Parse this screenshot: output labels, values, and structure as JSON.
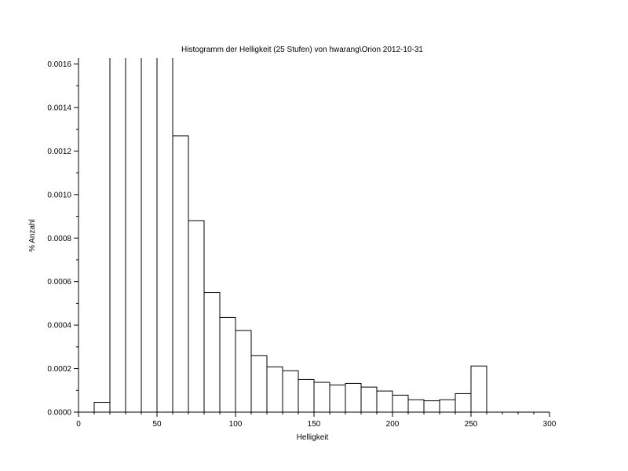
{
  "chart_data": {
    "type": "bar",
    "title": "Histogramm der Helligkeit (25 Stufen) von hwarang\\Orion 2012-10-31",
    "xlabel": "Helligkeit",
    "ylabel": "% Anzahl",
    "xlim": [
      0,
      300
    ],
    "ylim": [
      0,
      0.0016
    ],
    "x_ticks": [
      0,
      50,
      100,
      150,
      200,
      250,
      300
    ],
    "x_tick_labels": [
      "0",
      "50",
      "100",
      "150",
      "200",
      "250",
      "300"
    ],
    "y_ticks": [
      0,
      0.0002,
      0.0004,
      0.0006,
      0.0008,
      0.001,
      0.0012,
      0.0014,
      0.0016
    ],
    "y_tick_labels": [
      "0.0000",
      "0.0002",
      "0.0004",
      "0.0006",
      "0.0008",
      "0.0010",
      "0.0012",
      "0.0014",
      "0.0016"
    ],
    "bin_width": 10,
    "bins": [
      {
        "x0": 10,
        "x1": 20,
        "value": 4.5e-05
      },
      {
        "x0": 20,
        "x1": 30,
        "value": 0.0017
      },
      {
        "x0": 30,
        "x1": 40,
        "value": 0.0017
      },
      {
        "x0": 40,
        "x1": 50,
        "value": 0.0017
      },
      {
        "x0": 50,
        "x1": 60,
        "value": 0.0017
      },
      {
        "x0": 60,
        "x1": 70,
        "value": 0.00127
      },
      {
        "x0": 70,
        "x1": 80,
        "value": 0.00088
      },
      {
        "x0": 80,
        "x1": 90,
        "value": 0.00055
      },
      {
        "x0": 90,
        "x1": 100,
        "value": 0.000435
      },
      {
        "x0": 100,
        "x1": 110,
        "value": 0.000375
      },
      {
        "x0": 110,
        "x1": 120,
        "value": 0.00026
      },
      {
        "x0": 120,
        "x1": 130,
        "value": 0.000208
      },
      {
        "x0": 130,
        "x1": 140,
        "value": 0.00019
      },
      {
        "x0": 140,
        "x1": 150,
        "value": 0.00015
      },
      {
        "x0": 150,
        "x1": 160,
        "value": 0.000137
      },
      {
        "x0": 160,
        "x1": 170,
        "value": 0.000125
      },
      {
        "x0": 170,
        "x1": 180,
        "value": 0.000132
      },
      {
        "x0": 180,
        "x1": 190,
        "value": 0.000115
      },
      {
        "x0": 190,
        "x1": 200,
        "value": 9.7e-05
      },
      {
        "x0": 200,
        "x1": 210,
        "value": 7.8e-05
      },
      {
        "x0": 210,
        "x1": 220,
        "value": 5.7e-05
      },
      {
        "x0": 220,
        "x1": 230,
        "value": 5.2e-05
      },
      {
        "x0": 230,
        "x1": 240,
        "value": 5.7e-05
      },
      {
        "x0": 240,
        "x1": 250,
        "value": 8.5e-05
      },
      {
        "x0": 250,
        "x1": 260,
        "value": 0.000212
      }
    ],
    "grid": false,
    "legend": "none",
    "colors": {
      "bar_fill": "#ffffff",
      "bar_stroke": "#000000",
      "axis": "#000000",
      "background": "#ffffff"
    }
  }
}
